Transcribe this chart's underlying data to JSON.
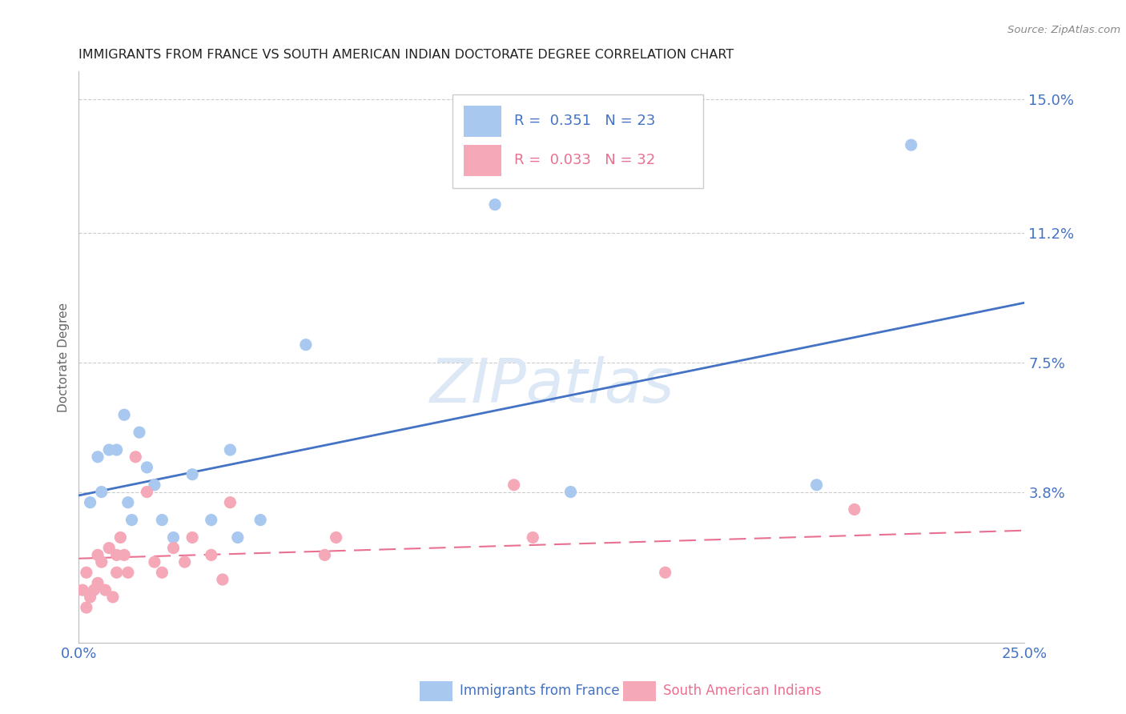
{
  "title": "IMMIGRANTS FROM FRANCE VS SOUTH AMERICAN INDIAN DOCTORATE DEGREE CORRELATION CHART",
  "source": "Source: ZipAtlas.com",
  "ylabel": "Doctorate Degree",
  "xlabel": "",
  "xlim": [
    0.0,
    0.25
  ],
  "ylim": [
    -0.005,
    0.158
  ],
  "xticks": [
    0.0,
    0.05,
    0.1,
    0.15,
    0.2,
    0.25
  ],
  "xticklabels": [
    "0.0%",
    "",
    "",
    "",
    "",
    "25.0%"
  ],
  "ytick_labels_right": [
    "15.0%",
    "11.2%",
    "7.5%",
    "3.8%"
  ],
  "ytick_vals_right": [
    0.15,
    0.112,
    0.075,
    0.038
  ],
  "legend_blue_R": "R =  0.351",
  "legend_blue_N": "N = 23",
  "legend_pink_R": "R =  0.033",
  "legend_pink_N": "N = 32",
  "legend_blue_label": "Immigrants from France",
  "legend_pink_label": "South American Indians",
  "blue_color": "#A8C8F0",
  "pink_color": "#F5A8B8",
  "blue_line_color": "#4472C4",
  "pink_line_color": "#E87090",
  "watermark": "ZIPatlas",
  "watermark_color": "#DCE8F5",
  "blue_x": [
    0.003,
    0.005,
    0.006,
    0.008,
    0.01,
    0.012,
    0.013,
    0.014,
    0.016,
    0.018,
    0.02,
    0.022,
    0.025,
    0.03,
    0.035,
    0.04,
    0.042,
    0.048,
    0.06,
    0.11,
    0.13,
    0.195,
    0.22
  ],
  "blue_y": [
    0.035,
    0.048,
    0.038,
    0.05,
    0.05,
    0.06,
    0.035,
    0.03,
    0.055,
    0.045,
    0.04,
    0.03,
    0.025,
    0.043,
    0.03,
    0.05,
    0.025,
    0.03,
    0.08,
    0.12,
    0.038,
    0.04,
    0.137
  ],
  "pink_x": [
    0.001,
    0.002,
    0.002,
    0.003,
    0.004,
    0.005,
    0.005,
    0.006,
    0.007,
    0.008,
    0.009,
    0.01,
    0.01,
    0.011,
    0.012,
    0.013,
    0.015,
    0.018,
    0.02,
    0.022,
    0.025,
    0.028,
    0.03,
    0.035,
    0.038,
    0.04,
    0.065,
    0.068,
    0.115,
    0.12,
    0.155,
    0.205
  ],
  "pink_y": [
    0.01,
    0.005,
    0.015,
    0.008,
    0.01,
    0.012,
    0.02,
    0.018,
    0.01,
    0.022,
    0.008,
    0.015,
    0.02,
    0.025,
    0.02,
    0.015,
    0.048,
    0.038,
    0.018,
    0.015,
    0.022,
    0.018,
    0.025,
    0.02,
    0.013,
    0.035,
    0.02,
    0.025,
    0.04,
    0.025,
    0.015,
    0.033
  ],
  "blue_trend_x": [
    0.0,
    0.25
  ],
  "blue_trend_y": [
    0.037,
    0.092
  ],
  "pink_trend_x": [
    0.0,
    0.25
  ],
  "pink_trend_y": [
    0.019,
    0.027
  ]
}
